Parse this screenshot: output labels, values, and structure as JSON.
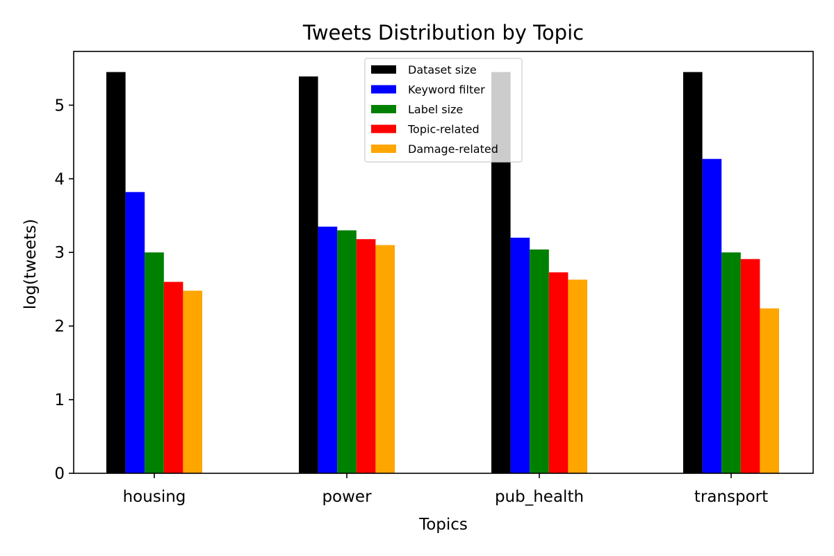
{
  "chart_data": {
    "type": "bar",
    "title": "Tweets Distribution by Topic",
    "xlabel": "Topics",
    "ylabel": "log(tweets)",
    "categories": [
      "housing",
      "power",
      "pub_health",
      "transport"
    ],
    "ylim": [
      0,
      5.73
    ],
    "yticks": [
      "0",
      "1",
      "2",
      "3",
      "4",
      "5"
    ],
    "grid": false,
    "legend_position": "top-center",
    "series": [
      {
        "name": "Dataset size",
        "color": "#000000",
        "values": [
          5.45,
          5.39,
          5.45,
          5.45
        ]
      },
      {
        "name": "Keyword filter",
        "color": "#0000ff",
        "values": [
          3.82,
          3.35,
          3.2,
          4.27
        ]
      },
      {
        "name": "Label size",
        "color": "#008000",
        "values": [
          3.0,
          3.3,
          3.04,
          3.0
        ]
      },
      {
        "name": "Topic-related",
        "color": "#ff0000",
        "values": [
          2.6,
          3.18,
          2.73,
          2.91
        ]
      },
      {
        "name": "Damage-related",
        "color": "#ffa500",
        "values": [
          2.48,
          3.1,
          2.63,
          2.24
        ]
      }
    ]
  }
}
